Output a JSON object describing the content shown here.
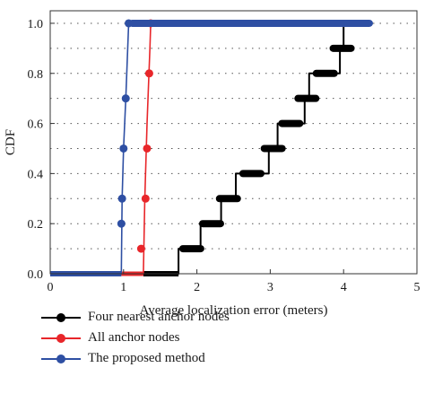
{
  "chart_data": {
    "type": "line",
    "step_style": "cdf",
    "xlabel": "Average localization error (meters)",
    "ylabel": "CDF",
    "xlim": [
      0,
      5
    ],
    "ylim": [
      0,
      1.05
    ],
    "xticks": [
      0,
      1,
      2,
      3,
      4,
      5
    ],
    "yticks": [
      0.0,
      0.2,
      0.4,
      0.6,
      0.8,
      1.0
    ],
    "xtick_labels": [
      "0",
      "1",
      "2",
      "3",
      "4",
      "5"
    ],
    "ytick_labels": [
      "0.0",
      "0.2",
      "0.4",
      "0.6",
      "0.8",
      "1.0"
    ],
    "grid": "dotted horizontal",
    "legend_position": "bottom",
    "series": [
      {
        "name": "Four nearest anchor nodes",
        "color": "#000000",
        "x": [
          0,
          1.27,
          1.75,
          1.75,
          2.05,
          2.05,
          2.33,
          2.33,
          2.53,
          2.53,
          2.98,
          2.98,
          3.1,
          3.1,
          3.47,
          3.47,
          3.53,
          3.53,
          3.95,
          3.95,
          4.0,
          4.0
        ],
        "y": [
          0,
          0,
          0,
          0.1,
          0.1,
          0.2,
          0.2,
          0.3,
          0.3,
          0.4,
          0.4,
          0.5,
          0.5,
          0.6,
          0.6,
          0.7,
          0.7,
          0.8,
          0.8,
          0.9,
          0.9,
          1.0
        ],
        "markers": [
          [
            1.93,
            0.1
          ],
          [
            2.2,
            0.2
          ],
          [
            2.43,
            0.3
          ],
          [
            2.75,
            0.4
          ],
          [
            3.04,
            0.5
          ],
          [
            3.28,
            0.6
          ],
          [
            3.5,
            0.7
          ],
          [
            3.75,
            0.8
          ],
          [
            3.98,
            0.9
          ]
        ]
      },
      {
        "name": "All anchor nodes",
        "color": "#e8262a",
        "x": [
          1.0,
          1.27,
          1.29,
          1.32,
          1.36,
          1.37
        ],
        "y": [
          0.0,
          0.0,
          0.3,
          0.6,
          0.9,
          1.0
        ],
        "markers": [
          [
            1.24,
            0.1
          ],
          [
            1.3,
            0.3
          ],
          [
            1.32,
            0.5
          ],
          [
            1.35,
            0.8
          ],
          [
            1.37,
            1.0
          ]
        ]
      },
      {
        "name": "The proposed method",
        "color": "#2e4fa3",
        "x": [
          0,
          0.97,
          0.98,
          1.0,
          1.03,
          1.07,
          4.4
        ],
        "y": [
          0,
          0,
          0.3,
          0.5,
          0.7,
          1.0,
          1.0
        ],
        "markers": [
          [
            0.97,
            0.2
          ],
          [
            0.98,
            0.3
          ],
          [
            1.0,
            0.5
          ],
          [
            1.03,
            0.7
          ],
          [
            1.07,
            1.0
          ]
        ]
      }
    ]
  }
}
